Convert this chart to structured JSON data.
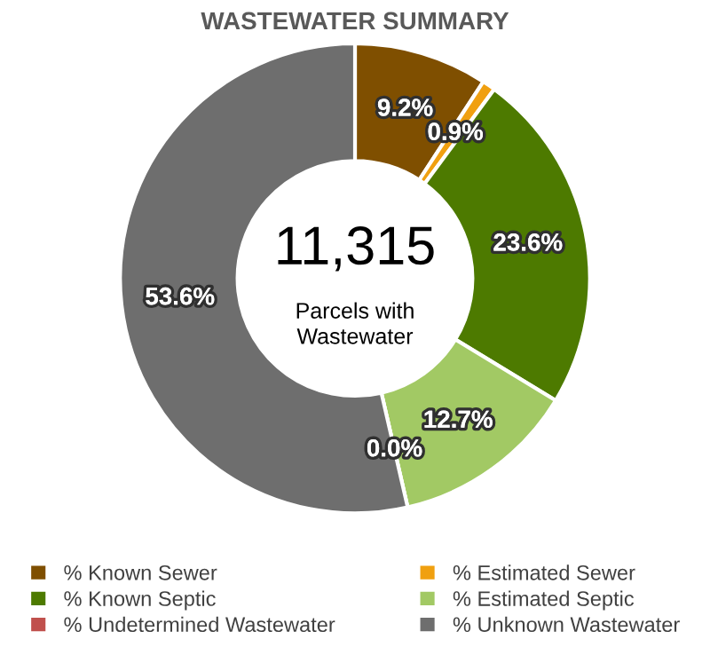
{
  "chart_data": {
    "type": "donut",
    "title": "WASTEWATER SUMMARY",
    "categories": [
      "% Known Sewer",
      "% Estimated Sewer",
      "% Known Septic",
      "% Estimated Septic",
      "% Undetermined Wastewater",
      "% Unknown Wastewater"
    ],
    "values": [
      9.2,
      0.9,
      23.6,
      12.7,
      0.0,
      53.6
    ],
    "colors": [
      "#7f4f00",
      "#f0a010",
      "#4d7a00",
      "#a2c964",
      "#c0504d",
      "#6e6e6e"
    ],
    "value_labels": [
      "9.2%",
      "0.9%",
      "23.6%",
      "12.7%",
      "0.0%",
      "53.6%"
    ],
    "annotations": [
      "11,315",
      "Parcels with Wastewater"
    ],
    "legend": "bottom"
  }
}
